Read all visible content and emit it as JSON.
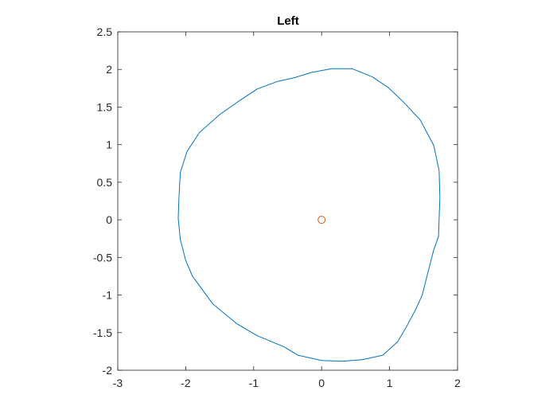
{
  "chart_data": {
    "type": "line",
    "title": "Left",
    "xlabel": "",
    "ylabel": "",
    "xlim": [
      -3,
      2
    ],
    "ylim": [
      -2,
      2.5
    ],
    "xticks": [
      -3,
      -2,
      -1,
      0,
      1,
      2
    ],
    "xtick_labels": [
      "-3",
      "-2",
      "-1",
      "0",
      "1",
      "2"
    ],
    "yticks": [
      -2,
      -1.5,
      -1,
      -0.5,
      0,
      0.5,
      1,
      1.5,
      2,
      2.5
    ],
    "ytick_labels": [
      "-2",
      "-1.5",
      "-1",
      "-0.5",
      "0",
      "0.5",
      "1",
      "1.5",
      "2",
      "2.5"
    ],
    "grid": false,
    "box": true,
    "series": [
      {
        "kind": "line",
        "color": "#0072BD",
        "x": [
          -2.08,
          -1.98,
          -1.8,
          -1.5,
          -1.2,
          -0.95,
          -0.65,
          -0.4,
          -0.15,
          0.15,
          0.45,
          0.75,
          0.98,
          1.2,
          1.45,
          1.65,
          1.73,
          1.74,
          1.72,
          1.65,
          1.55,
          1.48,
          1.38,
          1.25,
          1.12,
          0.9,
          0.6,
          0.3,
          0.0,
          -0.35,
          -0.55,
          -0.95,
          -1.25,
          -1.6,
          -1.9,
          -2.0,
          -2.08,
          -2.11,
          -2.1,
          -2.08
        ],
        "y": [
          0.63,
          0.91,
          1.16,
          1.4,
          1.59,
          1.74,
          1.84,
          1.89,
          1.96,
          2.01,
          2.01,
          1.9,
          1.76,
          1.57,
          1.33,
          0.99,
          0.65,
          0.3,
          -0.22,
          -0.4,
          -0.75,
          -1.0,
          -1.2,
          -1.42,
          -1.62,
          -1.8,
          -1.86,
          -1.88,
          -1.87,
          -1.8,
          -1.69,
          -1.54,
          -1.38,
          -1.12,
          -0.75,
          -0.54,
          -0.26,
          0.02,
          0.29,
          0.63
        ]
      },
      {
        "kind": "marker",
        "marker": "circle",
        "color": "#D95319",
        "x": [
          0
        ],
        "y": [
          0
        ]
      }
    ]
  }
}
